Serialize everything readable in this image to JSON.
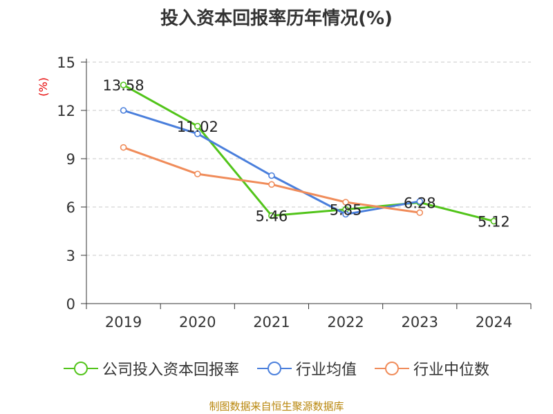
{
  "title": "投入资本回报率历年情况(%)",
  "source": "制图数据来自恒生聚源数据库",
  "chart_data": {
    "type": "line",
    "title": "投入资本回报率历年情况(%)",
    "categories": [
      "2019",
      "2020",
      "2021",
      "2022",
      "2023",
      "2024"
    ],
    "ylabel": "(%)",
    "ylim": [
      0,
      15
    ],
    "yticks": [
      0,
      3,
      6,
      9,
      12,
      15
    ],
    "grid": true,
    "legend_position": "bottom",
    "series": [
      {
        "name": "公司投入资本回报率",
        "color": "#52c41a",
        "values": [
          13.58,
          11.02,
          5.46,
          5.85,
          6.28,
          5.12
        ],
        "labels": [
          "13.58",
          "11.02",
          "5.46",
          "5.85",
          "6.28",
          "5.12"
        ]
      },
      {
        "name": "行业均值",
        "color": "#4a7fdc",
        "values": [
          12.0,
          10.55,
          7.95,
          5.55,
          6.35,
          null
        ]
      },
      {
        "name": "行业中位数",
        "color": "#f08c5a",
        "values": [
          9.7,
          8.05,
          7.4,
          6.3,
          5.65,
          null
        ]
      }
    ]
  }
}
